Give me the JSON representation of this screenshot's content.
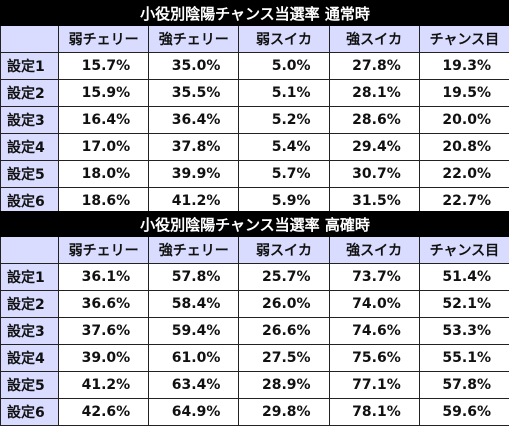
{
  "tables": [
    {
      "title": "小役別陰陽チャンス当選率 通常時",
      "headers": [
        "",
        "弱チェリー",
        "強チェリー",
        "弱スイカ",
        "強スイカ",
        "チャンス目"
      ],
      "rows": [
        {
          "label": "設定1",
          "values": [
            "15.7%",
            "35.0%",
            "5.0%",
            "27.8%",
            "19.3%"
          ]
        },
        {
          "label": "設定2",
          "values": [
            "15.9%",
            "35.5%",
            "5.1%",
            "28.1%",
            "19.5%"
          ]
        },
        {
          "label": "設定3",
          "values": [
            "16.4%",
            "36.4%",
            "5.2%",
            "28.6%",
            "20.0%"
          ]
        },
        {
          "label": "設定4",
          "values": [
            "17.0%",
            "37.8%",
            "5.4%",
            "29.4%",
            "20.8%"
          ]
        },
        {
          "label": "設定5",
          "values": [
            "18.0%",
            "39.9%",
            "5.7%",
            "30.7%",
            "22.0%"
          ]
        },
        {
          "label": "設定6",
          "values": [
            "18.6%",
            "41.2%",
            "5.9%",
            "31.5%",
            "22.7%"
          ]
        }
      ]
    },
    {
      "title": "小役別陰陽チャンス当選率 高確時",
      "headers": [
        "",
        "弱チェリー",
        "強チェリー",
        "弱スイカ",
        "強スイカ",
        "チャンス目"
      ],
      "rows": [
        {
          "label": "設定1",
          "values": [
            "36.1%",
            "57.8%",
            "25.7%",
            "73.7%",
            "51.4%"
          ]
        },
        {
          "label": "設定2",
          "values": [
            "36.6%",
            "58.4%",
            "26.0%",
            "74.0%",
            "52.1%"
          ]
        },
        {
          "label": "設定3",
          "values": [
            "37.6%",
            "59.4%",
            "26.6%",
            "74.6%",
            "53.3%"
          ]
        },
        {
          "label": "設定4",
          "values": [
            "39.0%",
            "61.0%",
            "27.5%",
            "75.6%",
            "55.1%"
          ]
        },
        {
          "label": "設定5",
          "values": [
            "41.2%",
            "63.4%",
            "28.9%",
            "77.1%",
            "57.8%"
          ]
        },
        {
          "label": "設定6",
          "values": [
            "42.6%",
            "64.9%",
            "29.8%",
            "78.1%",
            "59.6%"
          ]
        }
      ]
    }
  ]
}
